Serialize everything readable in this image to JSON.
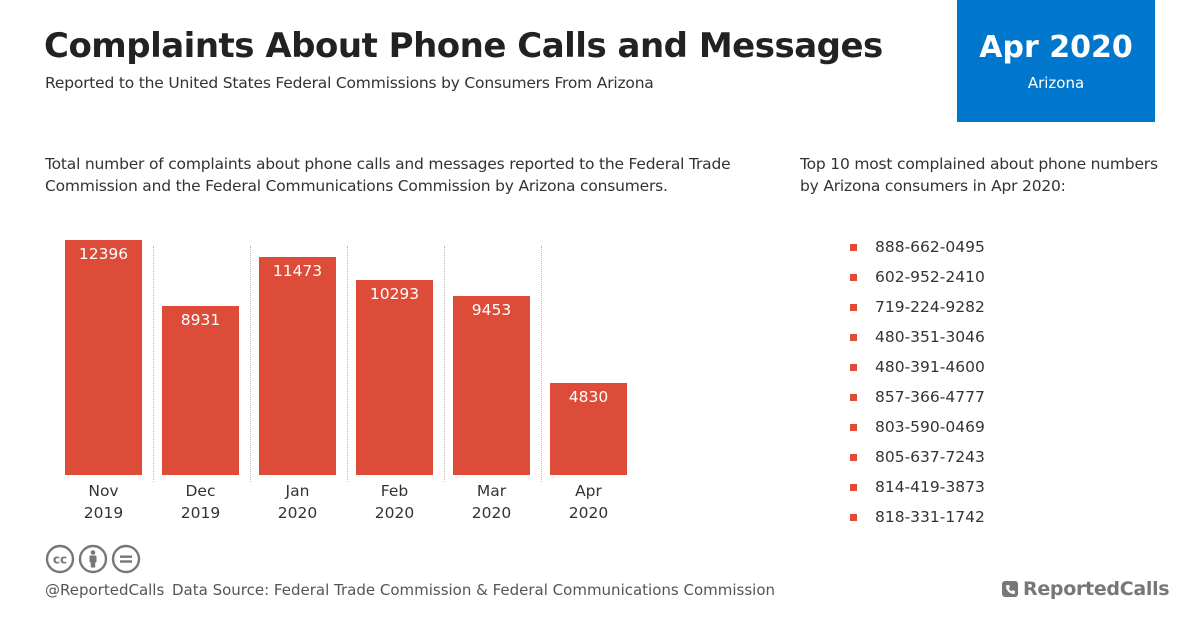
{
  "header": {
    "title": "Complaints About Phone Calls and Messages",
    "subtitle": "Reported to the United States Federal Commissions by Consumers From Arizona"
  },
  "badge": {
    "period": "Apr 2020",
    "state": "Arizona",
    "color": "#0077cc"
  },
  "chart_description": "Total number of complaints about phone calls and messages reported to the Federal Trade Commission and the Federal Communications Commission by Arizona consumers.",
  "chart_data": {
    "type": "bar",
    "title": "Total number of complaints about phone calls and messages reported to the Federal Trade Commission and the Federal Communications Commission by Arizona consumers.",
    "categories": [
      "Nov 2019",
      "Dec 2019",
      "Jan 2020",
      "Feb 2020",
      "Mar 2020",
      "Apr 2020"
    ],
    "values": [
      12396,
      8931,
      11473,
      10293,
      9453,
      4830
    ],
    "xlabel": "",
    "ylabel": "",
    "ylim": [
      0,
      12396
    ],
    "grid": "vertical dotted separators",
    "bar_color": "#dd4b39",
    "data_labels": true
  },
  "bars": [
    {
      "month": "Nov",
      "year": "2019",
      "value": "12396"
    },
    {
      "month": "Dec",
      "year": "2019",
      "value": "8931"
    },
    {
      "month": "Jan",
      "year": "2020",
      "value": "11473"
    },
    {
      "month": "Feb",
      "year": "2020",
      "value": "10293"
    },
    {
      "month": "Mar",
      "year": "2020",
      "value": "9453"
    },
    {
      "month": "Apr",
      "year": "2020",
      "value": "4830"
    }
  ],
  "top_numbers": {
    "heading": "Top 10 most complained about phone numbers by Arizona consumers in Apr 2020:",
    "items": [
      "888-662-0495",
      "602-952-2410",
      "719-224-9282",
      "480-351-3046",
      "480-391-4600",
      "857-366-4777",
      "803-590-0469",
      "805-637-7243",
      "814-419-3873",
      "818-331-1742"
    ]
  },
  "footer": {
    "license_icons": [
      "cc-icon",
      "attribution-icon",
      "no-derivatives-icon"
    ],
    "handle": "@ReportedCalls",
    "source": "Data Source: Federal Trade Commission & Federal Communications Commission",
    "brand": "ReportedCalls"
  }
}
